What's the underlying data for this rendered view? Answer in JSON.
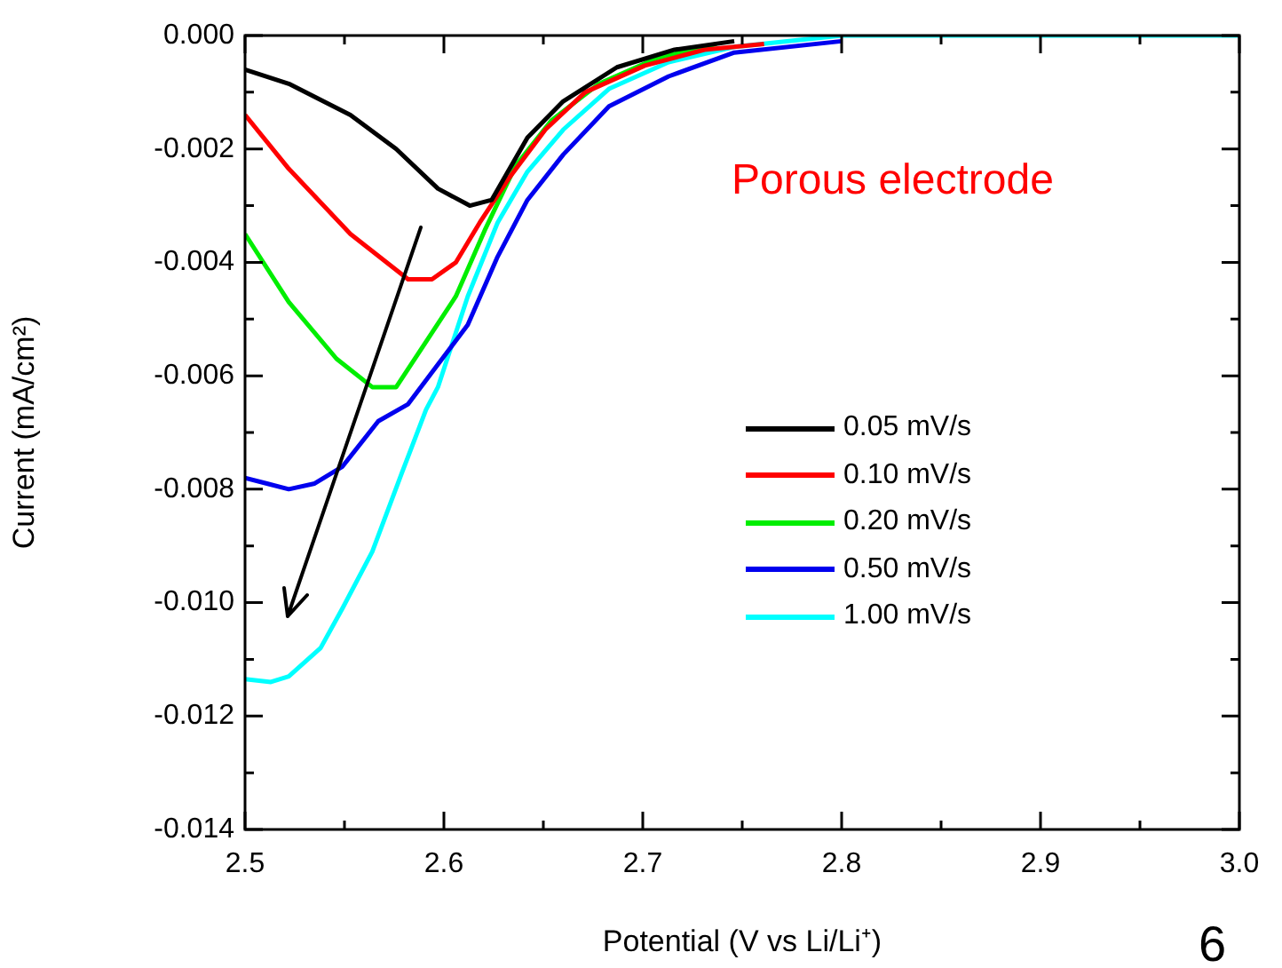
{
  "chart_data": {
    "type": "line",
    "xlabel": "Potential (V vs Li/Li⁺)",
    "ylabel": "Current (mA/cm²)",
    "annotations": [
      "Porous electrode",
      "6"
    ],
    "xlim": [
      2.5,
      3.0
    ],
    "ylim": [
      -0.014,
      0
    ],
    "xticks": [
      {
        "value": 2.5,
        "label": "2.5"
      },
      {
        "value": 2.55,
        "label": null
      },
      {
        "value": 2.6,
        "label": "2.6"
      },
      {
        "value": 2.65,
        "label": null
      },
      {
        "value": 2.7,
        "label": "2.7"
      },
      {
        "value": 2.75,
        "label": null
      },
      {
        "value": 2.8,
        "label": "2.8"
      },
      {
        "value": 2.85,
        "label": null
      },
      {
        "value": 2.9,
        "label": "2.9"
      },
      {
        "value": 2.95,
        "label": null
      },
      {
        "value": 3.0,
        "label": "3.0"
      }
    ],
    "yticks": [
      {
        "value": -0.014,
        "label": "-0.014"
      },
      {
        "value": -0.013,
        "label": null
      },
      {
        "value": -0.012,
        "label": "-0.012"
      },
      {
        "value": -0.011,
        "label": null
      },
      {
        "value": -0.01,
        "label": "-0.010"
      },
      {
        "value": -0.009,
        "label": null
      },
      {
        "value": -0.008,
        "label": "-0.008"
      },
      {
        "value": -0.007,
        "label": null
      },
      {
        "value": -0.006,
        "label": "-0.006"
      },
      {
        "value": -0.005,
        "label": null
      },
      {
        "value": -0.004,
        "label": "-0.004"
      },
      {
        "value": -0.003,
        "label": null
      },
      {
        "value": -0.002,
        "label": "-0.002"
      },
      {
        "value": -0.001,
        "label": null
      },
      {
        "value": 0,
        "label": "0.000"
      }
    ],
    "grid": false,
    "legend": "center",
    "marker": "none",
    "line_style": "solid",
    "series": [
      {
        "name": "0.05 mV/s",
        "color": "#000000",
        "x": [
          2.5,
          2.522,
          2.553,
          2.576,
          2.597,
          2.613,
          2.624,
          2.642,
          2.66,
          2.687,
          2.716,
          2.746
        ],
        "values": [
          -0.0006,
          -0.00085,
          -0.0014,
          -0.002,
          -0.0027,
          -0.003,
          -0.0029,
          -0.0018,
          -0.00116,
          -0.00056,
          -0.00025,
          -0.0001
        ]
      },
      {
        "name": "0.10 mV/s",
        "color": "#ff0000",
        "x": [
          2.5,
          2.522,
          2.553,
          2.582,
          2.594,
          2.606,
          2.618,
          2.633,
          2.651,
          2.671,
          2.701,
          2.731,
          2.761
        ],
        "values": [
          -0.0014,
          -0.00235,
          -0.0035,
          -0.0043,
          -0.0043,
          -0.004,
          -0.0033,
          -0.0025,
          -0.00166,
          -0.001,
          -0.00053,
          -0.00025,
          -0.00015
        ]
      },
      {
        "name": "0.20 mV/s",
        "color": "#00ee00",
        "x": [
          2.5,
          2.522,
          2.546,
          2.564,
          2.576,
          2.591,
          2.606,
          2.621,
          2.636,
          2.654,
          2.678,
          2.707,
          2.737
        ],
        "values": [
          -0.0035,
          -0.0047,
          -0.0057,
          -0.0062,
          -0.0062,
          -0.0054,
          -0.0046,
          -0.0034,
          -0.0023,
          -0.0015,
          -0.00085,
          -0.0004,
          -0.00015
        ]
      },
      {
        "name": "0.50 mV/s",
        "color": "#0000ee",
        "x": [
          2.5,
          2.511,
          2.522,
          2.535,
          2.549,
          2.567,
          2.582,
          2.612,
          2.627,
          2.642,
          2.66,
          2.683,
          2.713,
          2.746,
          2.8
        ],
        "values": [
          -0.0078,
          -0.0079,
          -0.008,
          -0.0079,
          -0.0076,
          -0.0068,
          -0.0065,
          -0.0051,
          -0.0039,
          -0.0029,
          -0.0021,
          -0.00125,
          -0.00072,
          -0.0003,
          -0.0001
        ]
      },
      {
        "name": "1.00 mV/s",
        "color": "#00ffff",
        "x": [
          2.5,
          2.513,
          2.522,
          2.538,
          2.549,
          2.564,
          2.579,
          2.591,
          2.597,
          2.612,
          2.627,
          2.642,
          2.66,
          2.683,
          2.713,
          2.746,
          2.8,
          2.9,
          3.0
        ],
        "values": [
          -0.01135,
          -0.0114,
          -0.0113,
          -0.0108,
          -0.0101,
          -0.0091,
          -0.0077,
          -0.0066,
          -0.0062,
          -0.0046,
          -0.0033,
          -0.0024,
          -0.00166,
          -0.00094,
          -0.00047,
          -0.0002,
          0,
          0,
          0
        ]
      }
    ]
  }
}
